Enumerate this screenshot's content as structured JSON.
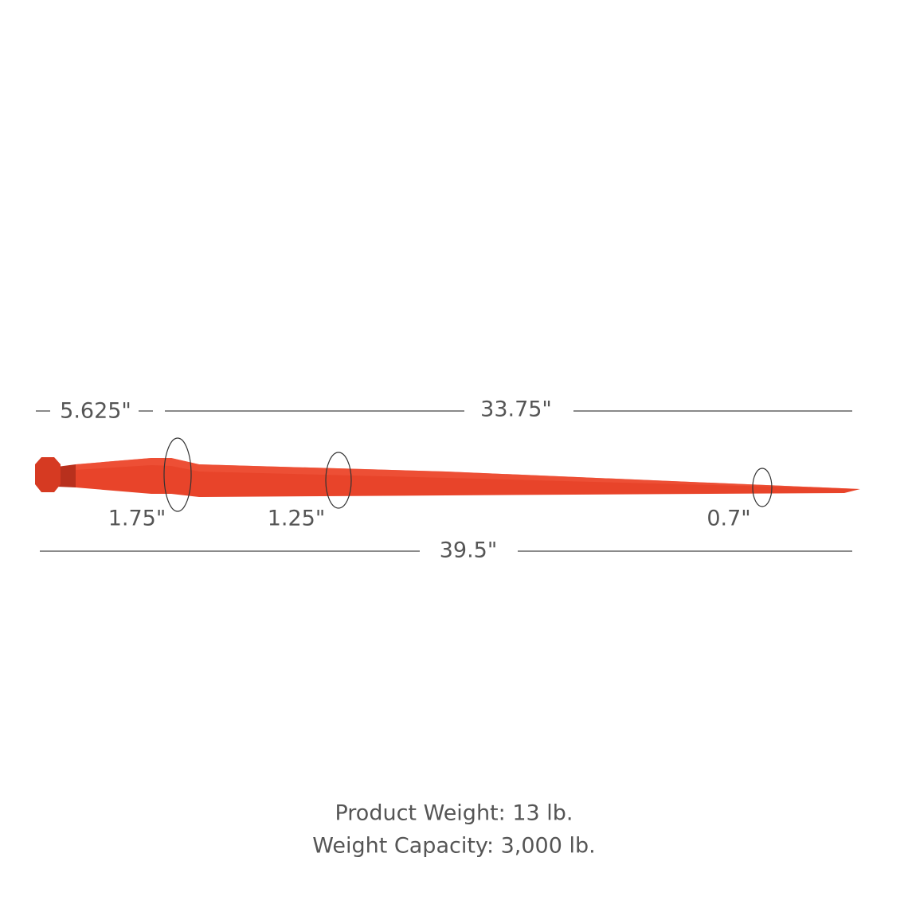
{
  "dimensions": {
    "base_length": "5.625\"",
    "tine_length": "33.75\"",
    "overall_length": "39.5\"",
    "base_diameter": "1.75\"",
    "mid_diameter": "1.25\"",
    "tip_diameter": "0.7\""
  },
  "specs": {
    "product_weight": "Product Weight: 13 lb.",
    "weight_capacity": "Weight Capacity: 3,000 lb."
  }
}
